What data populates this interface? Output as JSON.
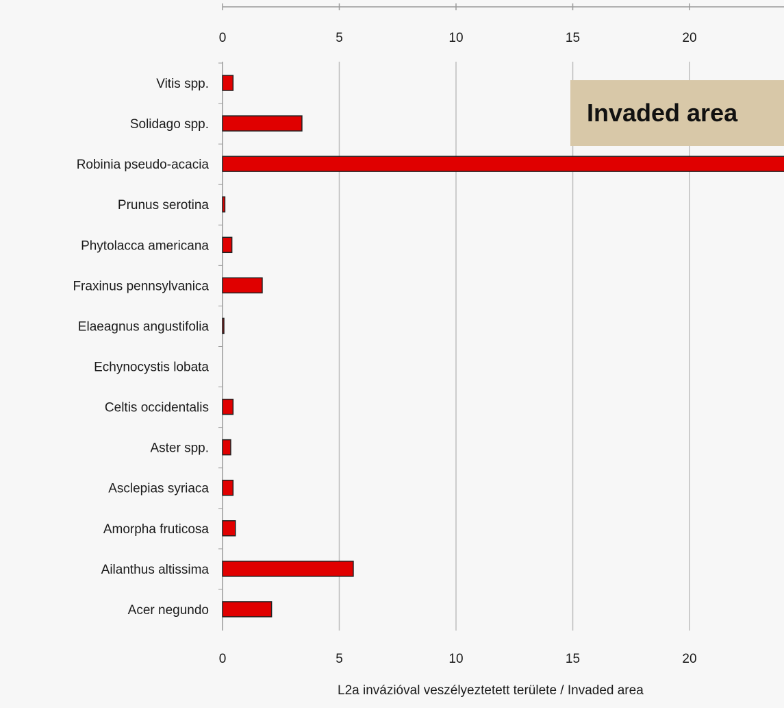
{
  "chart_data": {
    "type": "bar",
    "orientation": "horizontal",
    "categories": [
      "Vitis spp.",
      "Solidago spp.",
      "Robinia pseudo-acacia",
      "Prunus serotina",
      "Phytolacca americana",
      "Fraxinus pennsylvanica",
      "Elaeagnus angustifolia",
      "Echynocystis lobata",
      "Celtis occidentalis",
      "Aster spp.",
      "Asclepias syriaca",
      "Amorpha fruticosa",
      "Ailanthus altissima",
      "Acer negundo"
    ],
    "values": [
      0.45,
      3.4,
      26,
      0.1,
      0.4,
      1.7,
      0.05,
      0,
      0.45,
      0.35,
      0.45,
      0.55,
      5.6,
      2.1
    ],
    "xlim": [
      0,
      24
    ],
    "xticks": [
      0,
      5,
      10,
      15,
      20
    ],
    "xlabel": "L2a invázióval veszélyeztetett területe / Invaded area",
    "grid": true,
    "bar_color": "#e00000",
    "overlay_label": "Invaded area"
  }
}
